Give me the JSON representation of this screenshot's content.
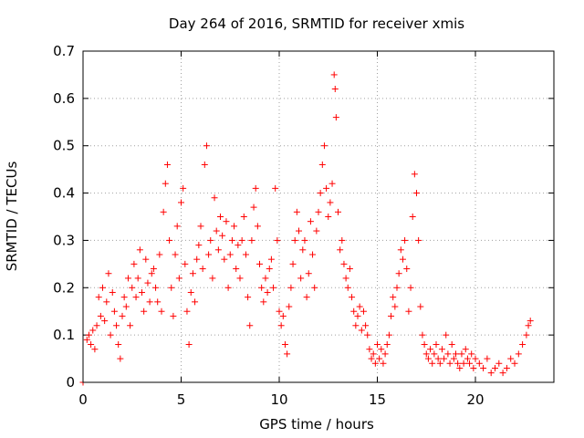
{
  "chart_data": {
    "type": "scatter",
    "title": "Day 264 of 2016, SRMTID for receiver xmis",
    "xlabel": "GPS time / hours",
    "ylabel": "SRMTID / TECUs",
    "xlim": [
      0,
      24
    ],
    "ylim": [
      0,
      0.7
    ],
    "xticks": [
      0,
      5,
      10,
      15,
      20
    ],
    "yticks": [
      0,
      0.1,
      0.2,
      0.3,
      0.4,
      0.5,
      0.6,
      0.7
    ],
    "xtick_labels": [
      "0",
      "5",
      "10",
      "15",
      "20"
    ],
    "ytick_labels": [
      "0",
      "0.1",
      "0.2",
      "0.3",
      "0.4",
      "0.5",
      "0.6",
      "0.7"
    ],
    "grid": true,
    "marker": "+",
    "color": "#ff0000",
    "series": [
      {
        "name": "SRMTID",
        "points": [
          [
            0.0,
            0.0
          ],
          [
            0.2,
            0.09
          ],
          [
            0.3,
            0.1
          ],
          [
            0.4,
            0.08
          ],
          [
            0.5,
            0.11
          ],
          [
            0.6,
            0.07
          ],
          [
            0.7,
            0.12
          ],
          [
            0.8,
            0.18
          ],
          [
            0.9,
            0.14
          ],
          [
            1.0,
            0.2
          ],
          [
            1.1,
            0.13
          ],
          [
            1.2,
            0.17
          ],
          [
            1.3,
            0.23
          ],
          [
            1.4,
            0.1
          ],
          [
            1.5,
            0.19
          ],
          [
            1.6,
            0.15
          ],
          [
            1.7,
            0.12
          ],
          [
            1.8,
            0.08
          ],
          [
            1.9,
            0.05
          ],
          [
            2.0,
            0.14
          ],
          [
            2.1,
            0.18
          ],
          [
            2.2,
            0.16
          ],
          [
            2.3,
            0.22
          ],
          [
            2.4,
            0.12
          ],
          [
            2.5,
            0.2
          ],
          [
            2.6,
            0.25
          ],
          [
            2.7,
            0.18
          ],
          [
            2.8,
            0.22
          ],
          [
            2.9,
            0.28
          ],
          [
            3.0,
            0.19
          ],
          [
            3.1,
            0.15
          ],
          [
            3.2,
            0.26
          ],
          [
            3.3,
            0.21
          ],
          [
            3.4,
            0.17
          ],
          [
            3.5,
            0.23
          ],
          [
            3.6,
            0.24
          ],
          [
            3.7,
            0.2
          ],
          [
            3.8,
            0.17
          ],
          [
            3.9,
            0.27
          ],
          [
            4.0,
            0.15
          ],
          [
            4.1,
            0.36
          ],
          [
            4.2,
            0.42
          ],
          [
            4.3,
            0.46
          ],
          [
            4.4,
            0.3
          ],
          [
            4.5,
            0.2
          ],
          [
            4.6,
            0.14
          ],
          [
            4.7,
            0.27
          ],
          [
            4.8,
            0.33
          ],
          [
            4.9,
            0.22
          ],
          [
            5.0,
            0.38
          ],
          [
            5.1,
            0.41
          ],
          [
            5.2,
            0.25
          ],
          [
            5.3,
            0.15
          ],
          [
            5.4,
            0.08
          ],
          [
            5.5,
            0.19
          ],
          [
            5.6,
            0.23
          ],
          [
            5.7,
            0.17
          ],
          [
            5.8,
            0.26
          ],
          [
            5.9,
            0.29
          ],
          [
            6.0,
            0.33
          ],
          [
            6.1,
            0.24
          ],
          [
            6.2,
            0.46
          ],
          [
            6.3,
            0.5
          ],
          [
            6.4,
            0.27
          ],
          [
            6.5,
            0.3
          ],
          [
            6.6,
            0.22
          ],
          [
            6.7,
            0.39
          ],
          [
            6.8,
            0.32
          ],
          [
            6.9,
            0.28
          ],
          [
            7.0,
            0.35
          ],
          [
            7.1,
            0.31
          ],
          [
            7.2,
            0.26
          ],
          [
            7.3,
            0.34
          ],
          [
            7.4,
            0.2
          ],
          [
            7.5,
            0.27
          ],
          [
            7.6,
            0.3
          ],
          [
            7.7,
            0.33
          ],
          [
            7.8,
            0.24
          ],
          [
            7.9,
            0.29
          ],
          [
            8.0,
            0.22
          ],
          [
            8.1,
            0.3
          ],
          [
            8.2,
            0.35
          ],
          [
            8.3,
            0.27
          ],
          [
            8.4,
            0.18
          ],
          [
            8.5,
            0.12
          ],
          [
            8.6,
            0.3
          ],
          [
            8.7,
            0.37
          ],
          [
            8.8,
            0.41
          ],
          [
            8.9,
            0.33
          ],
          [
            9.0,
            0.25
          ],
          [
            9.1,
            0.2
          ],
          [
            9.2,
            0.17
          ],
          [
            9.3,
            0.22
          ],
          [
            9.4,
            0.19
          ],
          [
            9.5,
            0.24
          ],
          [
            9.6,
            0.26
          ],
          [
            9.7,
            0.2
          ],
          [
            9.8,
            0.41
          ],
          [
            9.9,
            0.3
          ],
          [
            10.0,
            0.15
          ],
          [
            10.1,
            0.12
          ],
          [
            10.2,
            0.14
          ],
          [
            10.3,
            0.08
          ],
          [
            10.4,
            0.06
          ],
          [
            10.5,
            0.16
          ],
          [
            10.6,
            0.2
          ],
          [
            10.7,
            0.25
          ],
          [
            10.8,
            0.3
          ],
          [
            10.9,
            0.36
          ],
          [
            11.0,
            0.32
          ],
          [
            11.1,
            0.22
          ],
          [
            11.2,
            0.28
          ],
          [
            11.3,
            0.3
          ],
          [
            11.4,
            0.18
          ],
          [
            11.5,
            0.23
          ],
          [
            11.6,
            0.34
          ],
          [
            11.7,
            0.27
          ],
          [
            11.8,
            0.2
          ],
          [
            11.9,
            0.32
          ],
          [
            12.0,
            0.36
          ],
          [
            12.1,
            0.4
          ],
          [
            12.2,
            0.46
          ],
          [
            12.3,
            0.5
          ],
          [
            12.4,
            0.41
          ],
          [
            12.5,
            0.35
          ],
          [
            12.6,
            0.38
          ],
          [
            12.7,
            0.42
          ],
          [
            12.8,
            0.65
          ],
          [
            12.85,
            0.62
          ],
          [
            12.9,
            0.56
          ],
          [
            13.0,
            0.36
          ],
          [
            13.1,
            0.28
          ],
          [
            13.2,
            0.3
          ],
          [
            13.3,
            0.25
          ],
          [
            13.4,
            0.22
          ],
          [
            13.5,
            0.2
          ],
          [
            13.6,
            0.24
          ],
          [
            13.7,
            0.18
          ],
          [
            13.8,
            0.15
          ],
          [
            13.9,
            0.12
          ],
          [
            14.0,
            0.14
          ],
          [
            14.1,
            0.16
          ],
          [
            14.2,
            0.11
          ],
          [
            14.3,
            0.15
          ],
          [
            14.4,
            0.12
          ],
          [
            14.5,
            0.1
          ],
          [
            14.6,
            0.07
          ],
          [
            14.7,
            0.05
          ],
          [
            14.8,
            0.06
          ],
          [
            14.9,
            0.04
          ],
          [
            15.0,
            0.08
          ],
          [
            15.1,
            0.05
          ],
          [
            15.2,
            0.07
          ],
          [
            15.3,
            0.04
          ],
          [
            15.4,
            0.06
          ],
          [
            15.5,
            0.08
          ],
          [
            15.6,
            0.1
          ],
          [
            15.7,
            0.14
          ],
          [
            15.8,
            0.18
          ],
          [
            15.9,
            0.16
          ],
          [
            16.0,
            0.2
          ],
          [
            16.1,
            0.23
          ],
          [
            16.2,
            0.28
          ],
          [
            16.3,
            0.26
          ],
          [
            16.4,
            0.3
          ],
          [
            16.5,
            0.24
          ],
          [
            16.6,
            0.15
          ],
          [
            16.7,
            0.2
          ],
          [
            16.8,
            0.35
          ],
          [
            16.9,
            0.44
          ],
          [
            17.0,
            0.4
          ],
          [
            17.1,
            0.3
          ],
          [
            17.2,
            0.16
          ],
          [
            17.3,
            0.1
          ],
          [
            17.4,
            0.08
          ],
          [
            17.5,
            0.06
          ],
          [
            17.6,
            0.05
          ],
          [
            17.7,
            0.07
          ],
          [
            17.8,
            0.04
          ],
          [
            17.9,
            0.06
          ],
          [
            18.0,
            0.08
          ],
          [
            18.1,
            0.05
          ],
          [
            18.2,
            0.04
          ],
          [
            18.3,
            0.07
          ],
          [
            18.4,
            0.05
          ],
          [
            18.5,
            0.1
          ],
          [
            18.6,
            0.06
          ],
          [
            18.7,
            0.04
          ],
          [
            18.8,
            0.08
          ],
          [
            18.9,
            0.05
          ],
          [
            19.0,
            0.06
          ],
          [
            19.1,
            0.04
          ],
          [
            19.2,
            0.03
          ],
          [
            19.3,
            0.06
          ],
          [
            19.4,
            0.04
          ],
          [
            19.5,
            0.07
          ],
          [
            19.6,
            0.05
          ],
          [
            19.7,
            0.04
          ],
          [
            19.8,
            0.06
          ],
          [
            19.9,
            0.03
          ],
          [
            20.0,
            0.05
          ],
          [
            20.2,
            0.04
          ],
          [
            20.4,
            0.03
          ],
          [
            20.6,
            0.05
          ],
          [
            20.8,
            0.02
          ],
          [
            21.0,
            0.03
          ],
          [
            21.2,
            0.04
          ],
          [
            21.4,
            0.02
          ],
          [
            21.6,
            0.03
          ],
          [
            21.8,
            0.05
          ],
          [
            22.0,
            0.04
          ],
          [
            22.2,
            0.06
          ],
          [
            22.4,
            0.08
          ],
          [
            22.6,
            0.1
          ],
          [
            22.7,
            0.12
          ],
          [
            22.8,
            0.13
          ]
        ]
      }
    ]
  }
}
